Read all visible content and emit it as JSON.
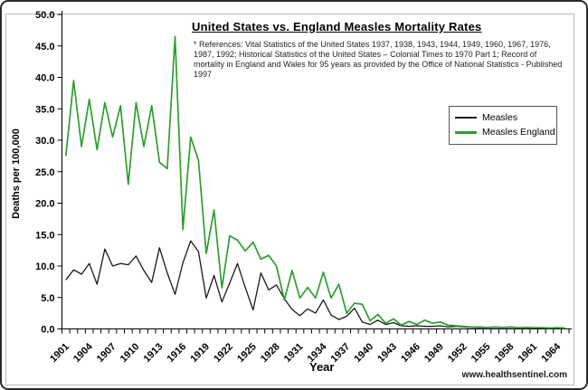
{
  "page": {
    "watermark": "www.healthsentinel.com"
  },
  "chart_data": {
    "type": "line",
    "title": "United States vs. England Measles Mortality Rates",
    "references": "* References: Vital Statistics of the United States 1937, 1938, 1943, 1944, 1949, 1960, 1967, 1976, 1987, 1992; Historical Statistics of the United States – Colonial Times to 1970 Part 1; Record of mortality in England and Wales for 95 years as provided by the Office of National Statistics - Published 1997",
    "xlabel": "Year",
    "ylabel": "Deaths per 100,000",
    "ylim": [
      0,
      50
    ],
    "y_tick_labels": [
      "0.0",
      "5.0",
      "10.0",
      "15.0",
      "20.0",
      "25.0",
      "30.0",
      "35.0",
      "40.0",
      "45.0",
      "50.0"
    ],
    "x_tick_labels": [
      "1901",
      "1904",
      "1907",
      "1910",
      "1913",
      "1916",
      "1919",
      "1922",
      "1925",
      "1928",
      "1931",
      "1934",
      "1937",
      "1940",
      "1943",
      "1946",
      "1949",
      "1952",
      "1955",
      "1958",
      "1961",
      "1964"
    ],
    "x_label_every": 3,
    "grid": false,
    "legend_position": "upper-right",
    "years": [
      1901,
      1902,
      1903,
      1904,
      1905,
      1906,
      1907,
      1908,
      1909,
      1910,
      1911,
      1912,
      1913,
      1914,
      1915,
      1916,
      1917,
      1918,
      1919,
      1920,
      1921,
      1922,
      1923,
      1924,
      1925,
      1926,
      1927,
      1928,
      1929,
      1930,
      1931,
      1932,
      1933,
      1934,
      1935,
      1936,
      1937,
      1938,
      1939,
      1940,
      1941,
      1942,
      1943,
      1944,
      1945,
      1946,
      1947,
      1948,
      1949,
      1950,
      1951,
      1952,
      1953,
      1954,
      1955,
      1956,
      1957,
      1958,
      1959,
      1960,
      1961,
      1962,
      1963,
      1964,
      1965
    ],
    "series": [
      {
        "name": "Measles",
        "color": "#1a1a1a",
        "stroke_width": 1.3,
        "values": [
          7.8,
          9.4,
          8.7,
          10.4,
          7.1,
          12.7,
          10.0,
          10.4,
          10.2,
          11.6,
          9.3,
          7.4,
          12.9,
          8.9,
          5.5,
          10.5,
          14.0,
          12.3,
          4.9,
          8.5,
          4.3,
          7.3,
          10.4,
          6.6,
          3.0,
          8.9,
          6.2,
          7.0,
          4.8,
          3.1,
          2.1,
          3.2,
          2.5,
          4.6,
          2.2,
          1.5,
          2.0,
          3.3,
          1.1,
          0.7,
          1.4,
          0.7,
          1.0,
          0.5,
          0.4,
          0.5,
          0.4,
          0.4,
          0.5,
          0.3,
          0.4,
          0.3,
          0.25,
          0.2,
          0.2,
          0.25,
          0.2,
          0.25,
          0.2,
          0.2,
          0.2,
          0.2,
          0.15,
          0.15,
          0.1
        ]
      },
      {
        "name": "Measles England",
        "color": "#2f9e2f",
        "stroke_width": 1.7,
        "values": [
          27.5,
          39.5,
          29.0,
          36.5,
          28.5,
          36.0,
          30.5,
          35.5,
          23.0,
          36.0,
          29.0,
          35.5,
          26.5,
          25.5,
          46.5,
          15.8,
          30.5,
          26.8,
          12.0,
          18.9,
          6.5,
          14.8,
          14.1,
          12.4,
          13.8,
          11.1,
          11.7,
          10.0,
          4.6,
          9.3,
          4.9,
          6.6,
          4.9,
          9.0,
          4.9,
          7.1,
          2.5,
          4.1,
          3.9,
          1.3,
          2.3,
          0.9,
          1.6,
          0.6,
          1.2,
          0.7,
          1.4,
          0.9,
          1.1,
          0.6,
          0.5,
          0.4,
          0.3,
          0.3,
          0.25,
          0.3,
          0.25,
          0.3,
          0.2,
          0.25,
          0.2,
          0.2,
          0.15,
          0.2,
          0.15
        ]
      }
    ]
  }
}
